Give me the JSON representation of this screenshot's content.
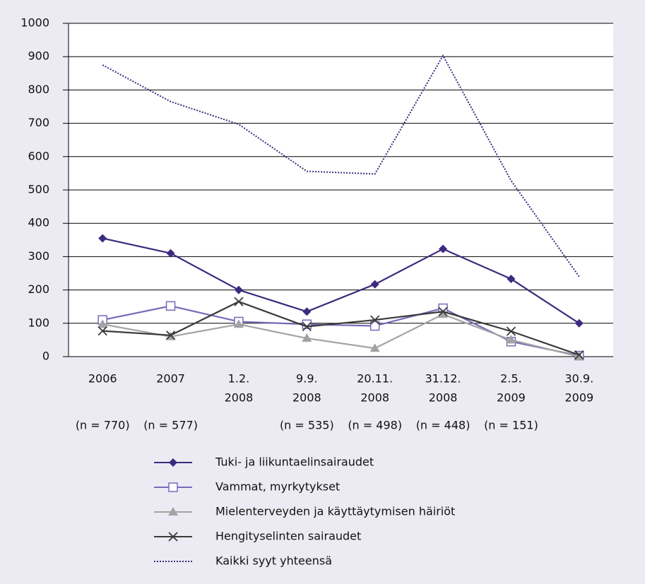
{
  "chart_data": {
    "type": "line",
    "categories": [
      [
        "2006"
      ],
      [
        "2007"
      ],
      [
        "1.2.",
        "2008"
      ],
      [
        "9.9.",
        "2008"
      ],
      [
        "20.11.",
        "2008"
      ],
      [
        "31.12.",
        "2008"
      ],
      [
        "2.5.",
        "2009"
      ],
      [
        "30.9.",
        "2009"
      ]
    ],
    "sample_sizes": [
      "(n = 770)",
      "(n = 577)",
      null,
      "(n = 535)",
      "(n = 498)",
      "(n = 448)",
      "(n = 151)",
      null
    ],
    "series": [
      {
        "name": "Tuki- ja liikuntaelinsairaudet",
        "color": "#3d2a7f",
        "marker": "diamond",
        "values": [
          355,
          310,
          200,
          135,
          217,
          323,
          233,
          100
        ]
      },
      {
        "name": "Vammat, myrkytykset",
        "color": "#7b68b8",
        "marker": "square",
        "values": [
          110,
          152,
          105,
          97,
          92,
          145,
          45,
          3
        ]
      },
      {
        "name": "Mielenterveyden ja käyttäytymisen häiriöt",
        "color": "#a3a3a3",
        "marker": "triangle",
        "values": [
          97,
          60,
          97,
          55,
          25,
          127,
          50,
          0
        ]
      },
      {
        "name": "Hengityselinten sairaudet",
        "color": "#3a3a3a",
        "marker": "x",
        "values": [
          77,
          64,
          165,
          90,
          110,
          135,
          76,
          5
        ]
      },
      {
        "name": "Kaikki syyt yhteensä",
        "color": "#3d2a7f",
        "marker": "none",
        "dashed": true,
        "values": [
          875,
          765,
          697,
          556,
          548,
          903,
          528,
          240
        ]
      }
    ],
    "ylim": [
      0,
      1000
    ],
    "yticks": [
      0,
      100,
      200,
      300,
      400,
      500,
      600,
      700,
      800,
      900,
      1000
    ],
    "grid": true,
    "legend": "bottom"
  }
}
